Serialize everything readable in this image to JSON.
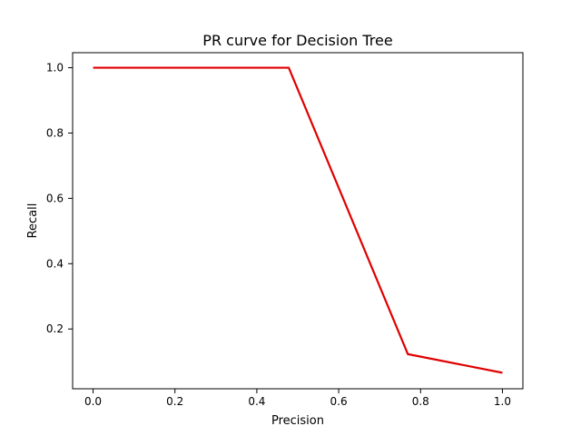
{
  "chart_data": {
    "type": "line",
    "title": "PR curve for Decision Tree",
    "xlabel": "Precision",
    "ylabel": "Recall",
    "xlim": [
      -0.05,
      1.05
    ],
    "ylim": [
      0.017,
      1.046
    ],
    "xticks": [
      0.0,
      0.2,
      0.4,
      0.6,
      0.8,
      1.0
    ],
    "xtick_labels": [
      "0.0",
      "0.2",
      "0.4",
      "0.6",
      "0.8",
      "1.0"
    ],
    "yticks": [
      0.2,
      0.4,
      0.6,
      0.8,
      1.0
    ],
    "ytick_labels": [
      "0.2",
      "0.4",
      "0.6",
      "0.8",
      "1.0"
    ],
    "grid": false,
    "legend": "none",
    "series": [
      {
        "color": "#e00000",
        "x": [
          0.0,
          0.478,
          0.769,
          1.0
        ],
        "y": [
          1.0,
          1.0,
          0.123,
          0.066
        ]
      }
    ]
  }
}
